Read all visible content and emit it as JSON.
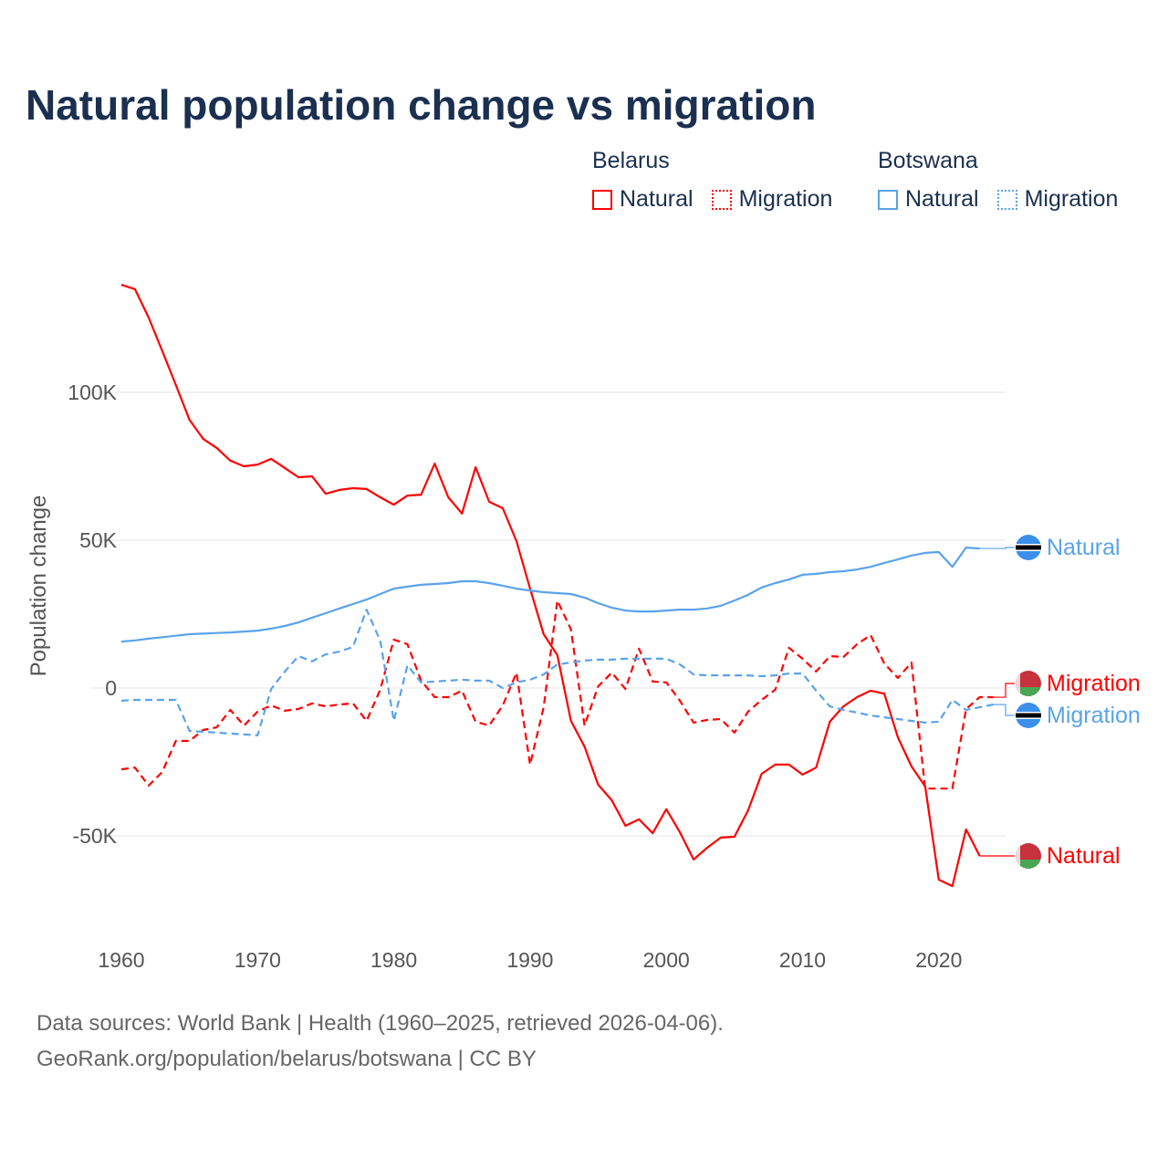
{
  "title": "Natural population change vs migration",
  "legend": {
    "groups": [
      {
        "name": "Belarus",
        "items": [
          {
            "label": "Natural",
            "style": "solid"
          },
          {
            "label": "Migration",
            "style": "dotted"
          }
        ],
        "color": "#ff0000"
      },
      {
        "name": "Botswana",
        "items": [
          {
            "label": "Natural",
            "style": "solid"
          },
          {
            "label": "Migration",
            "style": "dotted"
          }
        ],
        "color": "#5aa3ea"
      }
    ]
  },
  "footer": {
    "line1": "Data sources: World Bank | Health (1960–2025, retrieved 2026-04-06).",
    "line2": "GeoRank.org/population/belarus/botswana | CC BY"
  },
  "chart_data": {
    "type": "line",
    "title": "Natural population change vs migration",
    "xlabel": "",
    "ylabel": "Population change",
    "xlim": [
      1960,
      2025
    ],
    "ylim": [
      -80000,
      140000
    ],
    "yticks": [
      {
        "v": 100000,
        "label": "100K"
      },
      {
        "v": 50000,
        "label": "50K"
      },
      {
        "v": 0,
        "label": "0"
      },
      {
        "v": -50000,
        "label": "-50K"
      }
    ],
    "xticks": [
      1960,
      1970,
      1980,
      1990,
      2000,
      2010,
      2020
    ],
    "grid": true,
    "x_start": 1960,
    "series": [
      {
        "name": "Belarus Natural",
        "end_label": "Natural",
        "color": "#ff0000",
        "dash": false,
        "flag": "belarus",
        "values": [
          136400,
          134900,
          125300,
          114000,
          102500,
          90700,
          84300,
          81200,
          76900,
          75000,
          75600,
          77500,
          74400,
          71300,
          71600,
          65700,
          67000,
          67600,
          67300,
          64500,
          62000,
          65100,
          65400,
          75900,
          64500,
          59000,
          74700,
          63000,
          60800,
          49700,
          33600,
          18200,
          11100,
          -11100,
          -19800,
          -32700,
          -38000,
          -46600,
          -44400,
          -49100,
          -41000,
          -48800,
          -58000,
          -54000,
          -50600,
          -50300,
          -41400,
          -29000,
          -25900,
          -25900,
          -29300,
          -26900,
          -11400,
          -6200,
          -3100,
          -900,
          -1900,
          -16700,
          -26500,
          -33300,
          -64800,
          -67000,
          -47800,
          -56800
        ]
      },
      {
        "name": "Belarus Migration",
        "end_label": "Migration",
        "color": "#ff0000",
        "dash": true,
        "flag": "belarus",
        "values": [
          -27500,
          -26900,
          -33000,
          -28400,
          -17900,
          -17900,
          -14200,
          -13300,
          -7400,
          -12700,
          -8000,
          -5900,
          -7700,
          -7100,
          -5200,
          -6200,
          -5600,
          -5200,
          -11100,
          -600,
          16400,
          14800,
          2500,
          -3100,
          -3100,
          -900,
          -11400,
          -12700,
          -5900,
          5200,
          -25900,
          -6500,
          29600,
          19800,
          -12700,
          600,
          5200,
          -300,
          13300,
          2200,
          1900,
          -4300,
          -11700,
          -10800,
          -10500,
          -15100,
          -8000,
          -4000,
          -600,
          13600,
          9900,
          5600,
          10800,
          10500,
          14800,
          17900,
          8300,
          3400,
          8600,
          -34000,
          -34000,
          -34000,
          -7100,
          -3100,
          -3100
        ]
      },
      {
        "name": "Botswana Natural",
        "end_label": "Natural",
        "color": "#5aa3ea",
        "dash": false,
        "flag": "botswana",
        "values": [
          15700,
          16100,
          16700,
          17200,
          17700,
          18200,
          18400,
          18600,
          18800,
          19100,
          19400,
          20100,
          21000,
          22200,
          23800,
          25300,
          26900,
          28400,
          29900,
          31800,
          33600,
          34300,
          34900,
          35200,
          35500,
          36100,
          36100,
          35500,
          34600,
          33600,
          33000,
          32400,
          32100,
          31800,
          30600,
          28700,
          27200,
          26200,
          25900,
          25900,
          26200,
          26500,
          26500,
          26900,
          27800,
          29600,
          31500,
          34000,
          35500,
          36700,
          38300,
          38600,
          39200,
          39500,
          40100,
          41000,
          42300,
          43500,
          44800,
          45700,
          46000,
          41000,
          47500,
          47200
        ]
      },
      {
        "name": "Botswana Migration",
        "end_label": "Migration",
        "color": "#5aa3ea",
        "dash": true,
        "flag": "botswana",
        "values": [
          -4300,
          -4000,
          -4000,
          -4000,
          -4000,
          -14500,
          -14800,
          -15100,
          -15400,
          -15700,
          -16000,
          -300,
          5600,
          10800,
          9000,
          11400,
          12300,
          13900,
          26500,
          16000,
          -11100,
          7700,
          1900,
          2200,
          2500,
          2800,
          2500,
          2500,
          0,
          1900,
          2800,
          4600,
          8000,
          8600,
          9300,
          9600,
          9600,
          9900,
          9900,
          9900,
          9900,
          8000,
          4600,
          4300,
          4300,
          4300,
          4300,
          4000,
          4300,
          4900,
          4900,
          -900,
          -6200,
          -7400,
          -8300,
          -9300,
          -9900,
          -10500,
          -11100,
          -11700,
          -11400,
          -4000,
          -7400,
          -6500,
          -5600
        ]
      }
    ],
    "source": "World Bank | Health (1960–2025, retrieved 2026-04-06)"
  }
}
